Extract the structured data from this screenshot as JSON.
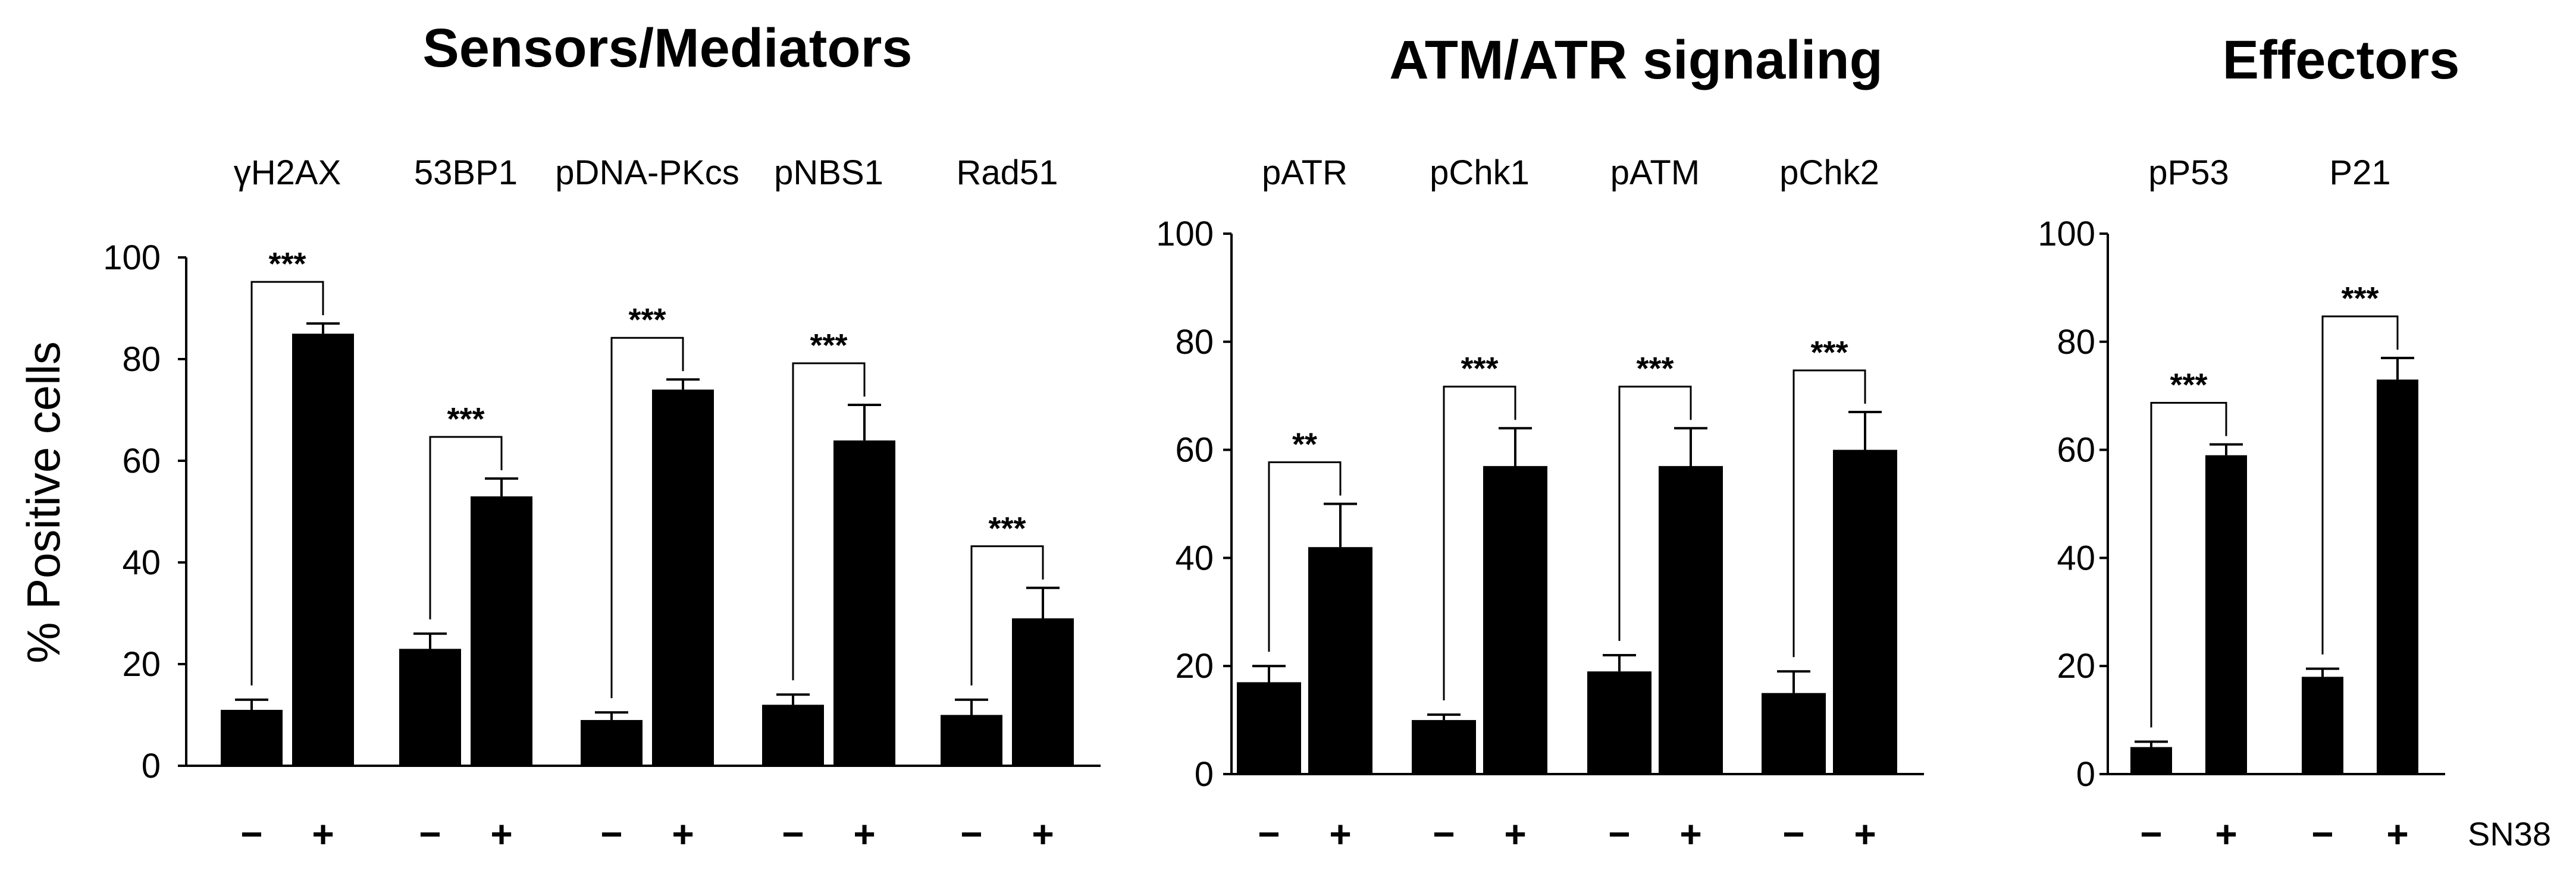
{
  "chart_data": [
    {
      "type": "bar",
      "title": "Sensors/Mediators",
      "ylabel": "% Positive cells",
      "xlabel": "",
      "ylim": [
        0,
        100
      ],
      "yticks": [
        "0",
        "20",
        "40",
        "60",
        "80",
        "100"
      ],
      "treatment_labels": [
        "−",
        "+"
      ],
      "categories": [
        "γH2AX",
        "53BP1",
        "pDNA-PKcs",
        "pNBS1",
        "Rad51"
      ],
      "series": [
        {
          "name": "−",
          "values": [
            11,
            23,
            9,
            12,
            10
          ],
          "errors": [
            2,
            3,
            1.5,
            2,
            3
          ]
        },
        {
          "name": "+",
          "values": [
            85,
            53,
            74,
            64,
            29
          ],
          "errors": [
            2,
            3.5,
            2,
            7,
            6
          ]
        }
      ],
      "significance": [
        "***",
        "***",
        "***",
        "***",
        "***"
      ]
    },
    {
      "type": "bar",
      "title": "ATM/ATR signaling",
      "ylabel": "",
      "xlabel": "",
      "ylim": [
        0,
        100
      ],
      "yticks": [
        "0",
        "20",
        "40",
        "60",
        "80",
        "100"
      ],
      "treatment_labels": [
        "−",
        "+"
      ],
      "categories": [
        "pATR",
        "pChk1",
        "pATM",
        "pChk2"
      ],
      "series": [
        {
          "name": "−",
          "values": [
            17,
            10,
            19,
            15
          ],
          "errors": [
            3,
            1,
            3,
            4
          ]
        },
        {
          "name": "+",
          "values": [
            42,
            57,
            57,
            60
          ],
          "errors": [
            8,
            7,
            7,
            7
          ]
        }
      ],
      "significance": [
        "**",
        "***",
        "***",
        "***"
      ]
    },
    {
      "type": "bar",
      "title": "Effectors",
      "ylabel": "",
      "xlabel": "SN38",
      "ylim": [
        0,
        100
      ],
      "yticks": [
        "0",
        "20",
        "40",
        "60",
        "80",
        "100"
      ],
      "treatment_labels": [
        "−",
        "+"
      ],
      "categories": [
        "pP53",
        "P21"
      ],
      "series": [
        {
          "name": "−",
          "values": [
            5,
            18
          ],
          "errors": [
            1,
            1.5
          ]
        },
        {
          "name": "+",
          "values": [
            59,
            73
          ],
          "errors": [
            2,
            4
          ]
        }
      ],
      "significance": [
        "***",
        "***"
      ]
    }
  ]
}
